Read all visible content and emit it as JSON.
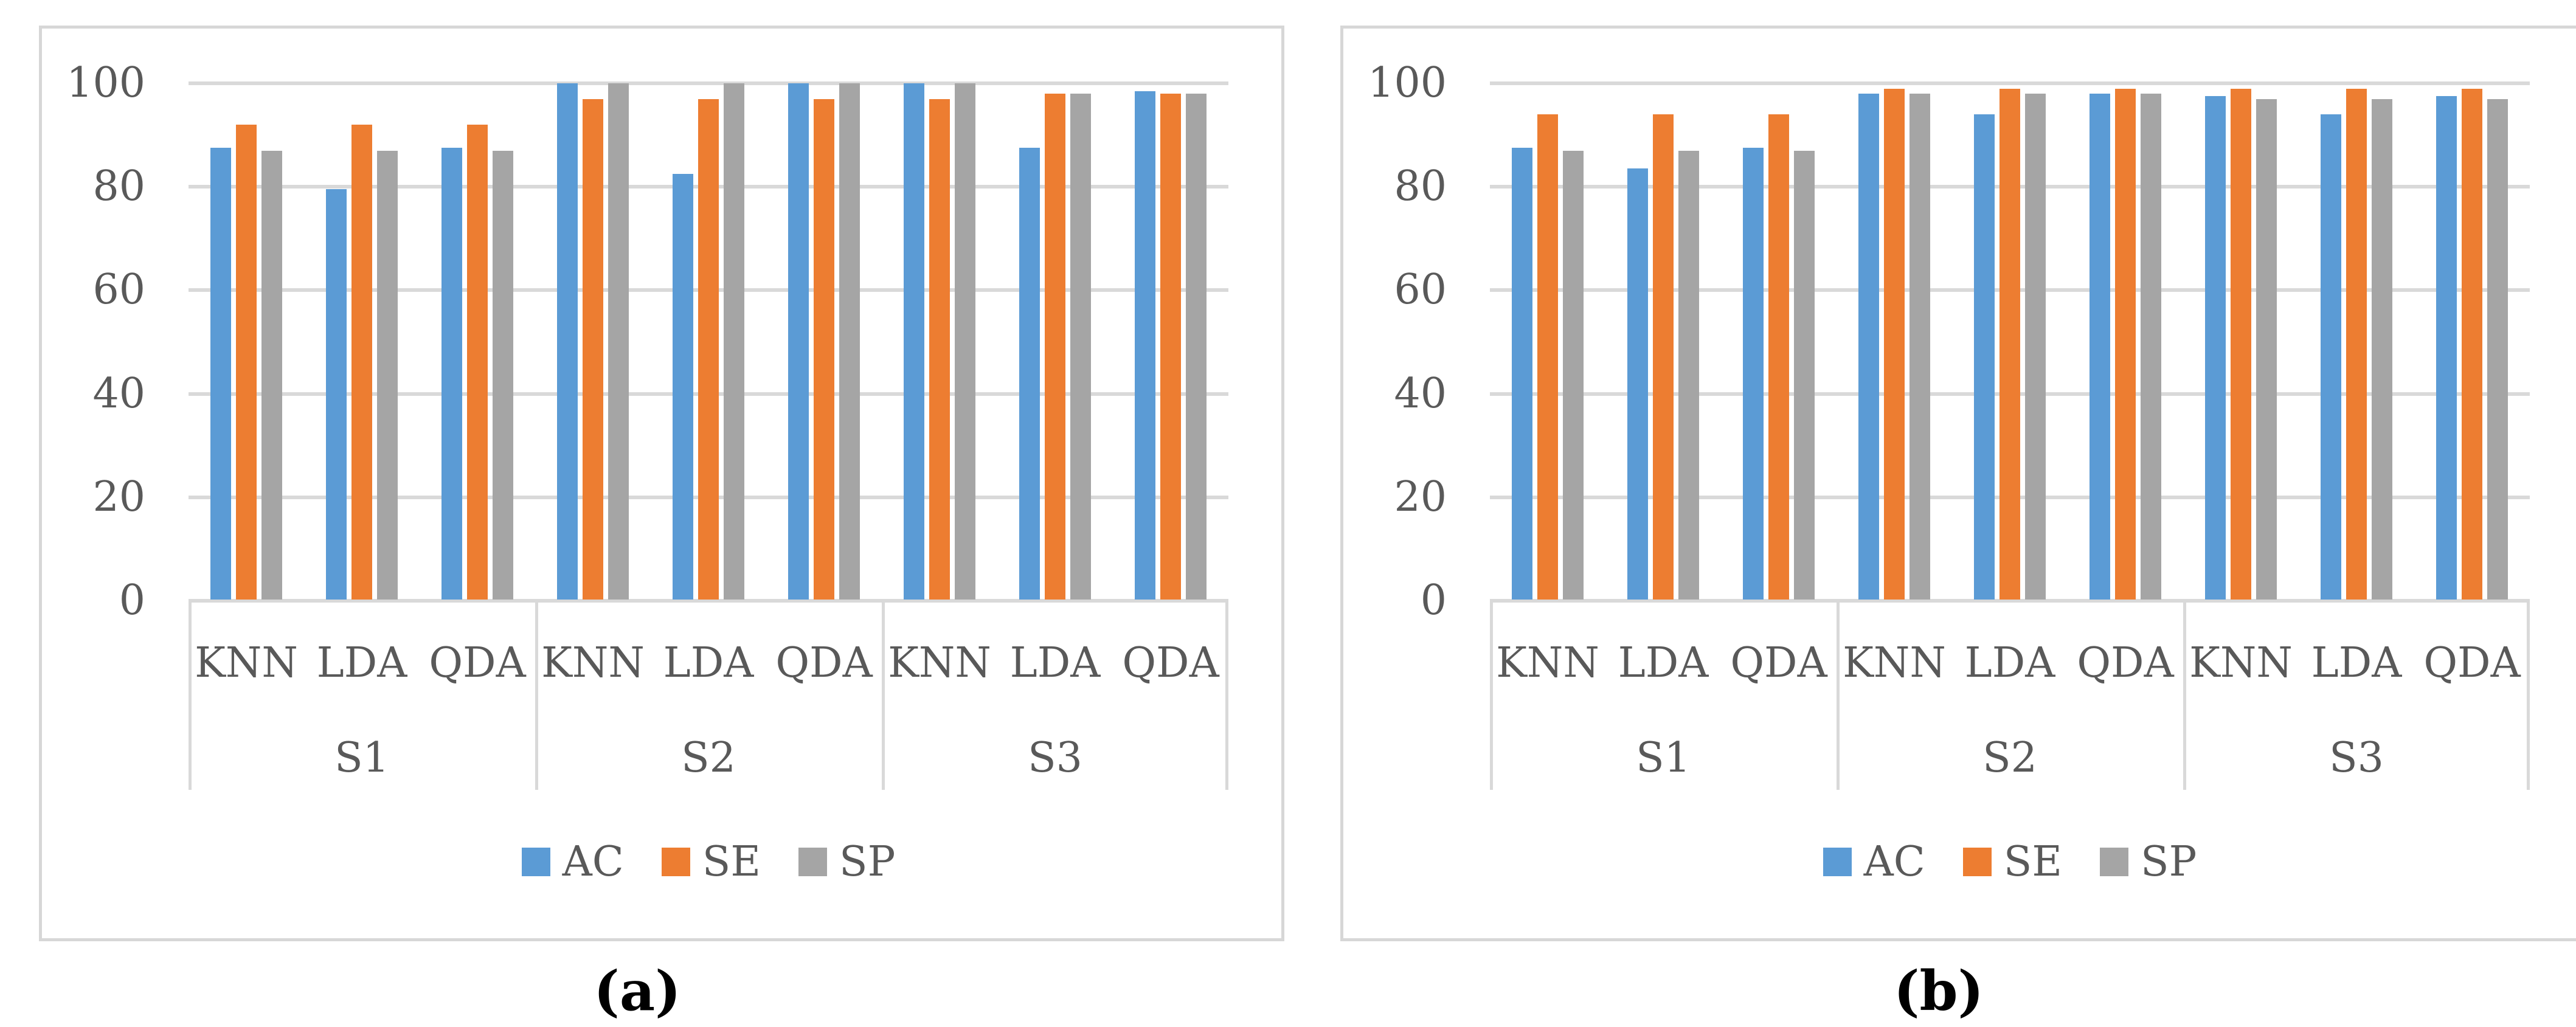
{
  "ui_colors": {
    "panel_border": "#d7d7d7",
    "gridline": "#d9d9d9",
    "axis_text": "#595959",
    "caption_text": "#000000",
    "series_blue": "#5B9BD5",
    "series_orange": "#ED7D31",
    "series_gray": "#A5A5A5"
  },
  "chart_data": [
    {
      "id": "a",
      "type": "bar",
      "title": "",
      "caption": "(a)",
      "xlabel": "",
      "ylabel": "",
      "ylim": [
        0,
        100
      ],
      "y_ticks": [
        0,
        20,
        40,
        60,
        80,
        100
      ],
      "grid": true,
      "legend_position": "bottom",
      "group_labels": [
        "S1",
        "S2",
        "S3"
      ],
      "categories": [
        "KNN",
        "LDA",
        "QDA",
        "KNN",
        "LDA",
        "QDA",
        "KNN",
        "LDA",
        "QDA"
      ],
      "series": [
        {
          "name": "AC",
          "color": "#5B9BD5",
          "values": [
            87.5,
            79.5,
            87.5,
            100,
            82.5,
            100,
            100,
            87.5,
            98.5
          ]
        },
        {
          "name": "SE",
          "color": "#ED7D31",
          "values": [
            92,
            92,
            92,
            97,
            97,
            97,
            97,
            98,
            98
          ]
        },
        {
          "name": "SP",
          "color": "#A5A5A5",
          "values": [
            87,
            87,
            87,
            100,
            100,
            100,
            100,
            98,
            98
          ]
        }
      ]
    },
    {
      "id": "b",
      "type": "bar",
      "title": "",
      "caption": "(b)",
      "xlabel": "",
      "ylabel": "",
      "ylim": [
        0,
        100
      ],
      "y_ticks": [
        0,
        20,
        40,
        60,
        80,
        100
      ],
      "grid": true,
      "legend_position": "bottom",
      "group_labels": [
        "S1",
        "S2",
        "S3"
      ],
      "categories": [
        "KNN",
        "LDA",
        "QDA",
        "KNN",
        "LDA",
        "QDA",
        "KNN",
        "LDA",
        "QDA"
      ],
      "series": [
        {
          "name": "AC",
          "color": "#5B9BD5",
          "values": [
            87.5,
            83.5,
            87.5,
            98,
            94,
            98,
            97.5,
            94,
            97.5
          ]
        },
        {
          "name": "SE",
          "color": "#ED7D31",
          "values": [
            94,
            94,
            94,
            99,
            99,
            99,
            99,
            99,
            99
          ]
        },
        {
          "name": "SP",
          "color": "#A5A5A5",
          "values": [
            87,
            87,
            87,
            98,
            98,
            98,
            97,
            97,
            97
          ]
        }
      ]
    }
  ]
}
